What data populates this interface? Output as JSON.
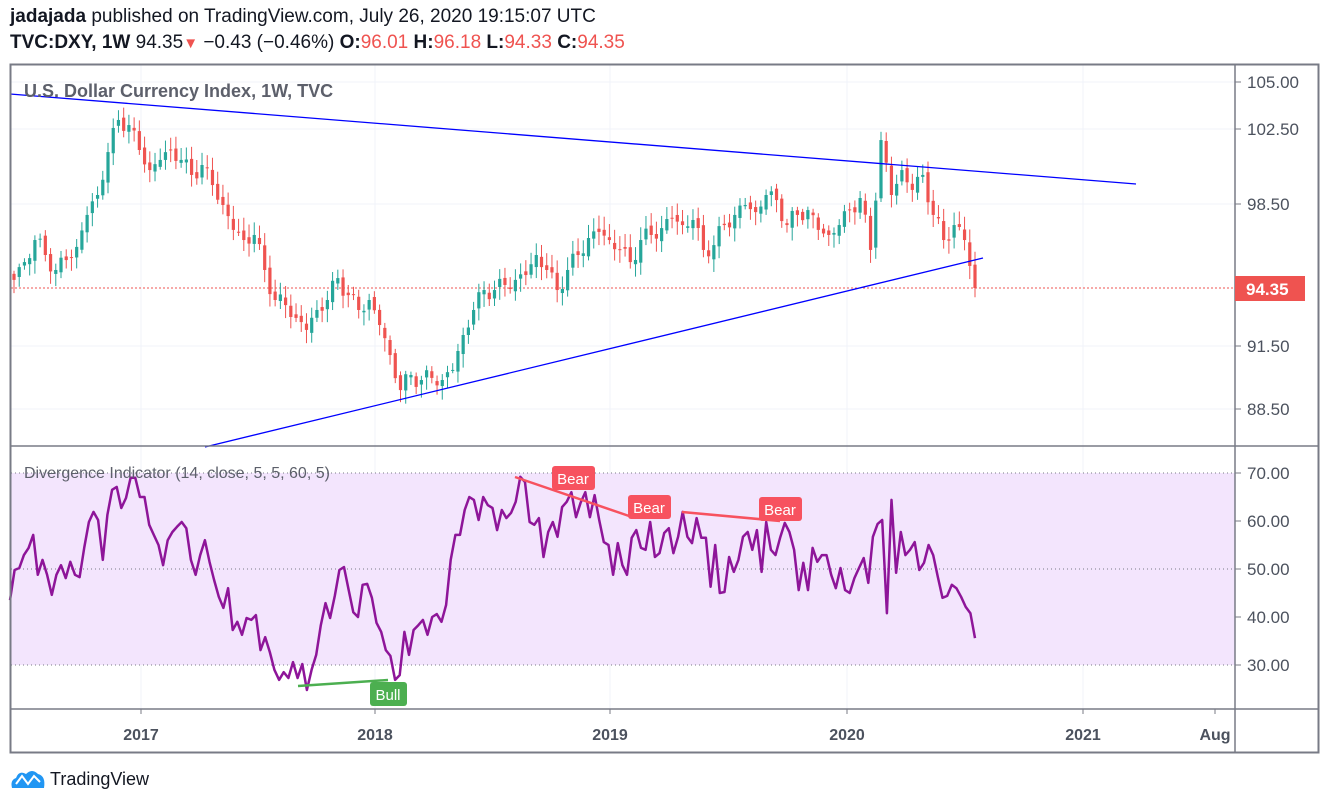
{
  "header": {
    "author": "jadajada",
    "published": "published on TradingView.com, July 26, 2020 19:15:07 UTC",
    "symbol": "TVC:DXY, 1W",
    "last": "94.35",
    "change": "−0.43 (−0.46%)",
    "o_label": "O:",
    "o": "96.01",
    "h_label": "H:",
    "h": "96.18",
    "l_label": "L:",
    "l": "94.33",
    "c_label": "C:",
    "c": "94.35"
  },
  "footer": {
    "brand": "TradingView"
  },
  "colors": {
    "up": "#26a69a",
    "down": "#ef5350",
    "trendline": "#0000ff",
    "rsi": "#8e1599",
    "band": "#f3e5fd",
    "bull": "#4caf50",
    "bear": "#f7525f"
  },
  "chart_data": [
    {
      "type": "candlestick",
      "title": "U.S. Dollar Currency Index, 1W, TVC",
      "y_ticks": [
        "105.00",
        "102.50",
        "98.50",
        "94.35",
        "91.50",
        "88.50"
      ],
      "y_tick_values": [
        105,
        102.5,
        98.5,
        94.35,
        91.5,
        88.5
      ],
      "last_price_label": "94.35",
      "x_ticks": [
        "2017",
        "2018",
        "2019",
        "2020",
        "2021",
        "Aug"
      ],
      "closes_biweekly": [
        94.75,
        95.63,
        96.72,
        95.98,
        95.24,
        95.73,
        96.38,
        97.96,
        98.98,
        101.27,
        102.98,
        102.71,
        101.38,
        100.31,
        100.85,
        101.38,
        100.85,
        100.05,
        100.58,
        99.51,
        98.45,
        97.22,
        96.72,
        96.97,
        95.24,
        93.76,
        93.51,
        92.88,
        92.29,
        93.27,
        93.76,
        94.84,
        94.0,
        93.27,
        93.76,
        92.53,
        91.07,
        89.4,
        90.12,
        89.88,
        89.98,
        89.88,
        90.36,
        92.04,
        93.27,
        94.25,
        94.25,
        94.5,
        94.75,
        94.99,
        95.98,
        95.24,
        94.25,
        95.24,
        95.98,
        96.82,
        97.12,
        96.72,
        96.23,
        95.63,
        96.72,
        96.97,
        97.31,
        97.81,
        97.46,
        97.71,
        96.23,
        96.47,
        97.46,
        97.96,
        98.45,
        98.1,
        98.98,
        98.71,
        97.46,
        97.96,
        98.2,
        97.22,
        96.97,
        97.46,
        98.2,
        98.82,
        96.23,
        101.91,
        98.98,
        100.31,
        99.25,
        100.05,
        97.96,
        96.72,
        97.46,
        96.72,
        94.35
      ],
      "trendlines": [
        "descending resistance",
        "ascending support"
      ]
    },
    {
      "type": "line",
      "title": "Divergence Indicator (14, close, 5, 5, 60, 5)",
      "y_ticks": [
        "70.00",
        "60.00",
        "50.00",
        "40.00",
        "30.00"
      ],
      "y_tick_values": [
        70,
        60,
        50,
        40,
        30
      ],
      "band": [
        30,
        70
      ],
      "values": [
        43.5,
        49.8,
        50.2,
        52.9,
        54.4,
        57.1,
        48.8,
        51.9,
        48.8,
        44.6,
        48.8,
        50.8,
        48.1,
        51.5,
        48.8,
        48.3,
        54.4,
        59.8,
        61.9,
        60.2,
        51.9,
        61.3,
        66.5,
        67.1,
        62.7,
        64.8,
        69.0,
        69.0,
        65.0,
        65.0,
        59.2,
        57.1,
        55.0,
        50.8,
        56.0,
        57.7,
        58.8,
        59.8,
        58.5,
        51.9,
        48.8,
        52.9,
        56.0,
        51.5,
        47.7,
        44.2,
        41.9,
        46.0,
        37.3,
        39.0,
        36.3,
        39.8,
        39.4,
        40.4,
        33.1,
        35.8,
        32.7,
        29.0,
        26.9,
        28.5,
        27.3,
        30.6,
        27.3,
        30.2,
        24.8,
        29.0,
        32.1,
        38.3,
        42.9,
        39.8,
        44.4,
        49.8,
        50.4,
        45.6,
        41.0,
        40.0,
        46.7,
        46.9,
        44.0,
        38.8,
        36.9,
        33.1,
        31.9,
        26.9,
        27.9,
        36.9,
        32.1,
        37.3,
        38.3,
        39.4,
        36.3,
        40.0,
        40.6,
        39.0,
        42.5,
        51.9,
        57.1,
        57.1,
        62.3,
        65.0,
        64.4,
        60.2,
        65.0,
        63.3,
        62.7,
        58.1,
        62.3,
        60.6,
        61.7,
        64.0,
        69.2,
        68.1,
        59.8,
        59.2,
        60.6,
        52.5,
        57.7,
        59.8,
        56.7,
        62.9,
        64.0,
        66.0,
        60.8,
        63.8,
        66.0,
        60.8,
        65.4,
        60.2,
        55.6,
        55.0,
        48.8,
        55.4,
        50.8,
        48.8,
        56.5,
        58.1,
        54.4,
        54.0,
        59.8,
        52.5,
        53.3,
        57.5,
        58.5,
        53.3,
        56.7,
        61.9,
        56.7,
        55.4,
        60.6,
        56.5,
        56.5,
        46.3,
        55.0,
        45.0,
        45.2,
        52.5,
        49.4,
        51.9,
        56.7,
        57.7,
        54.0,
        58.1,
        49.4,
        59.8,
        54.0,
        52.9,
        56.5,
        59.6,
        57.7,
        54.0,
        45.6,
        51.3,
        45.6,
        54.4,
        51.5,
        52.9,
        52.9,
        48.8,
        46.0,
        50.2,
        45.6,
        45.0,
        48.1,
        50.2,
        52.3,
        47.1,
        56.7,
        59.4,
        60.2,
        40.8,
        64.4,
        49.2,
        57.7,
        52.9,
        54.0,
        55.6,
        49.8,
        51.3,
        55.0,
        52.9,
        48.3,
        44.0,
        44.4,
        46.7,
        46.0,
        44.2,
        42.1,
        40.8,
        35.6
      ],
      "signals": [
        {
          "label": "Bear"
        },
        {
          "label": "Bear"
        },
        {
          "label": "Bear"
        },
        {
          "label": "Bull"
        }
      ]
    }
  ]
}
